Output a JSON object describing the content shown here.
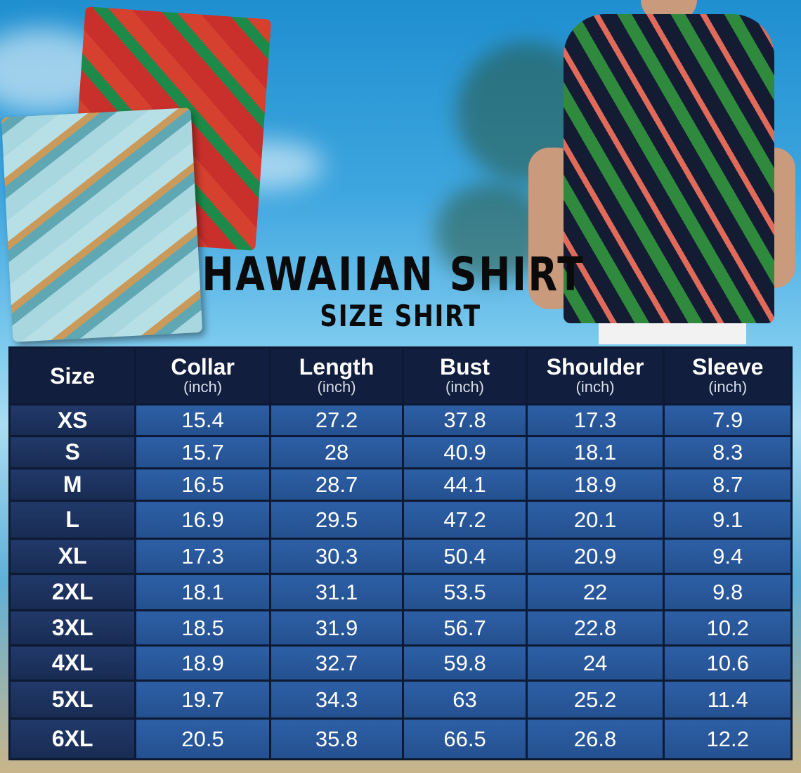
{
  "title": "HAWAIIAN SHIRT",
  "subtitle": "SIZE SHIRT",
  "table": {
    "headers": [
      {
        "label": "Size",
        "unit": ""
      },
      {
        "label": "Collar",
        "unit": "(inch)"
      },
      {
        "label": "Length",
        "unit": "(inch)"
      },
      {
        "label": "Bust",
        "unit": "(inch)"
      },
      {
        "label": "Shoulder",
        "unit": "(inch)"
      },
      {
        "label": "Sleeve",
        "unit": "(inch)"
      }
    ],
    "rows": [
      [
        "XS",
        "15.4",
        "27.2",
        "37.8",
        "17.3",
        "7.9"
      ],
      [
        "S",
        "15.7",
        "28",
        "40.9",
        "18.1",
        "8.3"
      ],
      [
        "M",
        "16.5",
        "28.7",
        "44.1",
        "18.9",
        "8.7"
      ],
      [
        "L",
        "16.9",
        "29.5",
        "47.2",
        "20.1",
        "9.1"
      ],
      [
        "XL",
        "17.3",
        "30.3",
        "50.4",
        "20.9",
        "9.4"
      ],
      [
        "2XL",
        "18.1",
        "31.1",
        "53.5",
        "22",
        "9.8"
      ],
      [
        "3XL",
        "18.5",
        "31.9",
        "56.7",
        "22.8",
        "10.2"
      ],
      [
        "4XL",
        "18.9",
        "32.7",
        "59.8",
        "24",
        "10.6"
      ],
      [
        "5XL",
        "19.7",
        "34.3",
        "63",
        "25.2",
        "11.4"
      ],
      [
        "6XL",
        "20.5",
        "35.8",
        "66.5",
        "26.8",
        "12.2"
      ]
    ]
  },
  "colors": {
    "header_bg": "#111e3d",
    "cell_bg": "#2d5fa6",
    "size_cell_bg": "#21396a",
    "grid": "#0e1a33"
  }
}
